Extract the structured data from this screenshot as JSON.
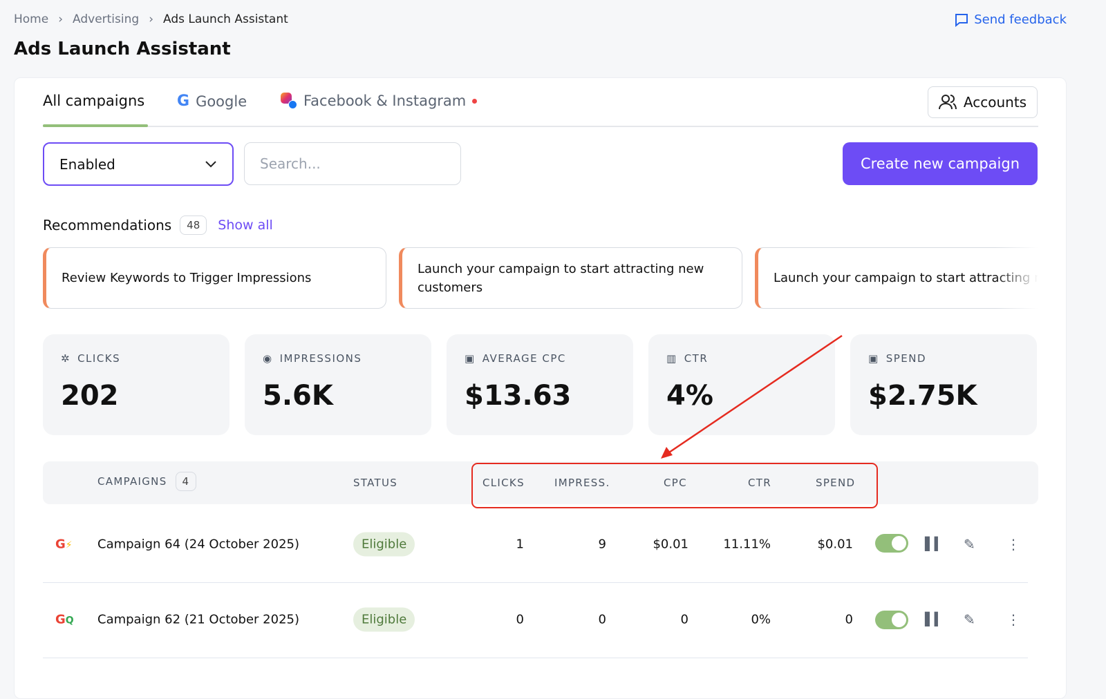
{
  "breadcrumb": [
    "Home",
    "Advertising",
    "Ads Launch Assistant"
  ],
  "feedback": "Send feedback",
  "page_title": "Ads Launch Assistant",
  "tabs": [
    {
      "label": "All campaigns",
      "active": true
    },
    {
      "label": "Google"
    },
    {
      "label": "Facebook & Instagram",
      "dot": true
    }
  ],
  "accounts_label": "Accounts",
  "filter": {
    "selected": "Enabled"
  },
  "search": {
    "placeholder": "Search..."
  },
  "create_label": "Create new campaign",
  "recommendations": {
    "title": "Recommendations",
    "count": "48",
    "show_all": "Show all",
    "items": [
      "Review Keywords to Trigger Impressions",
      "Launch your campaign to start attracting new customers",
      "Launch your campaign to start attracting new customers"
    ]
  },
  "stats": [
    {
      "label": "CLICKS",
      "value": "202",
      "icon": "cursor-click-icon"
    },
    {
      "label": "IMPRESSIONS",
      "value": "5.6K",
      "icon": "eye-icon"
    },
    {
      "label": "AVERAGE CPC",
      "value": "$13.63",
      "icon": "money-cursor-icon"
    },
    {
      "label": "CTR",
      "value": "4%",
      "icon": "chart-plus-icon"
    },
    {
      "label": "SPEND",
      "value": "$2.75K",
      "icon": "money-plus-icon"
    }
  ],
  "table": {
    "headers": {
      "campaigns": "CAMPAIGNS",
      "count": "4",
      "status": "STATUS",
      "clicks": "CLICKS",
      "impressions": "IMPRESS.",
      "cpc": "CPC",
      "ctr": "CTR",
      "spend": "SPEND"
    },
    "rows": [
      {
        "name": "Campaign 64 (24 October 2025)",
        "status": "Eligible",
        "clicks": "1",
        "impressions": "9",
        "cpc": "$0.01",
        "ctr": "11.11%",
        "spend": "$0.01",
        "enabled": true,
        "icon": "google-performance-max-icon"
      },
      {
        "name": "Campaign 62 (21 October 2025)",
        "status": "Eligible",
        "clicks": "0",
        "impressions": "0",
        "cpc": "0",
        "ctr": "0%",
        "spend": "0",
        "enabled": true,
        "icon": "google-search-campaign-icon"
      }
    ]
  },
  "colors": {
    "accent": "#6d4cf5",
    "annotation": "#e52b20",
    "success": "#93bf7a",
    "rec_border": "#f08a5d"
  }
}
